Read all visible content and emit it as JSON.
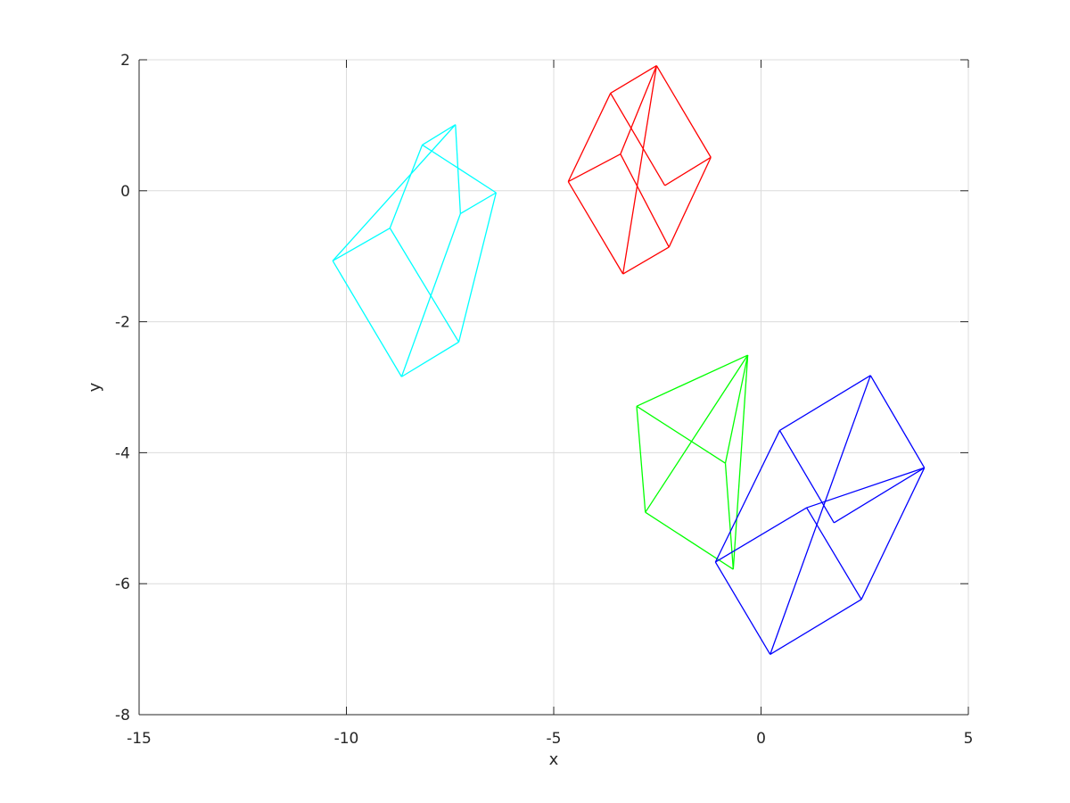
{
  "chart_data": {
    "type": "line",
    "title": "",
    "xlabel": "x",
    "ylabel": "y",
    "xlim": [
      -15,
      5
    ],
    "ylim": [
      -8,
      2
    ],
    "xticks": [
      -15,
      -10,
      -5,
      0,
      5
    ],
    "yticks": [
      -8,
      -6,
      -4,
      -2,
      0,
      2
    ],
    "xtick_labels": [
      "-15",
      "-10",
      "-5",
      "0",
      "5"
    ],
    "ytick_labels": [
      "-8",
      "-6",
      "-4",
      "-2",
      "0",
      "2"
    ],
    "grid": true,
    "series": [
      {
        "color": "#00ffff",
        "segments": [
          [
            [
              -10.33,
              -1.07
            ],
            [
              -8.95,
              -0.57
            ]
          ],
          [
            [
              -10.33,
              -1.07
            ],
            [
              -8.67,
              -2.84
            ]
          ],
          [
            [
              -8.95,
              -0.57
            ],
            [
              -8.17,
              0.7
            ]
          ],
          [
            [
              -8.95,
              -0.57
            ],
            [
              -7.29,
              -2.31
            ]
          ],
          [
            [
              -8.67,
              -2.84
            ],
            [
              -7.29,
              -2.31
            ]
          ],
          [
            [
              -8.67,
              -2.84
            ],
            [
              -7.25,
              -0.35
            ]
          ],
          [
            [
              -8.17,
              0.7
            ],
            [
              -7.37,
              1.01
            ]
          ],
          [
            [
              -8.17,
              0.7
            ],
            [
              -6.39,
              -0.03
            ]
          ],
          [
            [
              -7.37,
              1.01
            ],
            [
              -7.25,
              -0.35
            ]
          ],
          [
            [
              -7.29,
              -2.31
            ],
            [
              -6.39,
              -0.03
            ]
          ],
          [
            [
              -7.25,
              -0.35
            ],
            [
              -6.39,
              -0.03
            ]
          ],
          [
            [
              -10.33,
              -1.07
            ],
            [
              -7.37,
              1.01
            ]
          ]
        ]
      },
      {
        "color": "#ff0000",
        "segments": [
          [
            [
              -4.65,
              0.14
            ],
            [
              -3.63,
              1.49
            ]
          ],
          [
            [
              -4.65,
              0.14
            ],
            [
              -3.39,
              0.56
            ]
          ],
          [
            [
              -4.65,
              0.14
            ],
            [
              -3.33,
              -1.27
            ]
          ],
          [
            [
              -3.63,
              1.49
            ],
            [
              -2.52,
              1.91
            ]
          ],
          [
            [
              -3.63,
              1.49
            ],
            [
              -2.32,
              0.08
            ]
          ],
          [
            [
              -2.52,
              1.91
            ],
            [
              -3.39,
              0.56
            ]
          ],
          [
            [
              -2.52,
              1.91
            ],
            [
              -1.21,
              0.51
            ]
          ],
          [
            [
              -3.39,
              0.56
            ],
            [
              -2.22,
              -0.86
            ]
          ],
          [
            [
              -3.33,
              -1.27
            ],
            [
              -2.22,
              -0.86
            ]
          ],
          [
            [
              -3.33,
              -1.27
            ],
            [
              -2.52,
              1.91
            ]
          ],
          [
            [
              -2.32,
              0.08
            ],
            [
              -1.21,
              0.51
            ]
          ],
          [
            [
              -2.22,
              -0.86
            ],
            [
              -1.21,
              0.51
            ]
          ]
        ]
      },
      {
        "color": "#00ff00",
        "segments": [
          [
            [
              -3.0,
              -3.29
            ],
            [
              -0.32,
              -2.51
            ]
          ],
          [
            [
              -3.0,
              -3.29
            ],
            [
              -2.79,
              -4.91
            ]
          ],
          [
            [
              -3.0,
              -3.29
            ],
            [
              -0.86,
              -4.16
            ]
          ],
          [
            [
              -2.79,
              -4.91
            ],
            [
              -0.32,
              -2.51
            ]
          ],
          [
            [
              -2.79,
              -4.91
            ],
            [
              -0.67,
              -5.78
            ]
          ],
          [
            [
              -0.32,
              -2.51
            ],
            [
              -0.86,
              -4.16
            ]
          ],
          [
            [
              -0.32,
              -2.51
            ],
            [
              -0.67,
              -5.78
            ]
          ],
          [
            [
              -0.86,
              -4.16
            ],
            [
              -0.67,
              -5.78
            ]
          ]
        ]
      },
      {
        "color": "#0000ff",
        "segments": [
          [
            [
              -1.1,
              -5.67
            ],
            [
              0.45,
              -3.66
            ]
          ],
          [
            [
              -1.1,
              -5.67
            ],
            [
              0.22,
              -7.08
            ]
          ],
          [
            [
              -1.1,
              -5.67
            ],
            [
              1.1,
              -4.84
            ]
          ],
          [
            [
              0.45,
              -3.66
            ],
            [
              2.64,
              -2.82
            ]
          ],
          [
            [
              0.45,
              -3.66
            ],
            [
              1.76,
              -5.07
            ]
          ],
          [
            [
              2.64,
              -2.82
            ],
            [
              3.94,
              -4.23
            ]
          ],
          [
            [
              2.64,
              -2.82
            ],
            [
              0.22,
              -7.08
            ]
          ],
          [
            [
              1.1,
              -4.84
            ],
            [
              3.94,
              -4.23
            ]
          ],
          [
            [
              1.1,
              -4.84
            ],
            [
              2.42,
              -6.24
            ]
          ],
          [
            [
              0.22,
              -7.08
            ],
            [
              2.42,
              -6.24
            ]
          ],
          [
            [
              2.42,
              -6.24
            ],
            [
              3.94,
              -4.23
            ]
          ],
          [
            [
              1.76,
              -5.07
            ],
            [
              3.94,
              -4.23
            ]
          ]
        ]
      }
    ]
  }
}
